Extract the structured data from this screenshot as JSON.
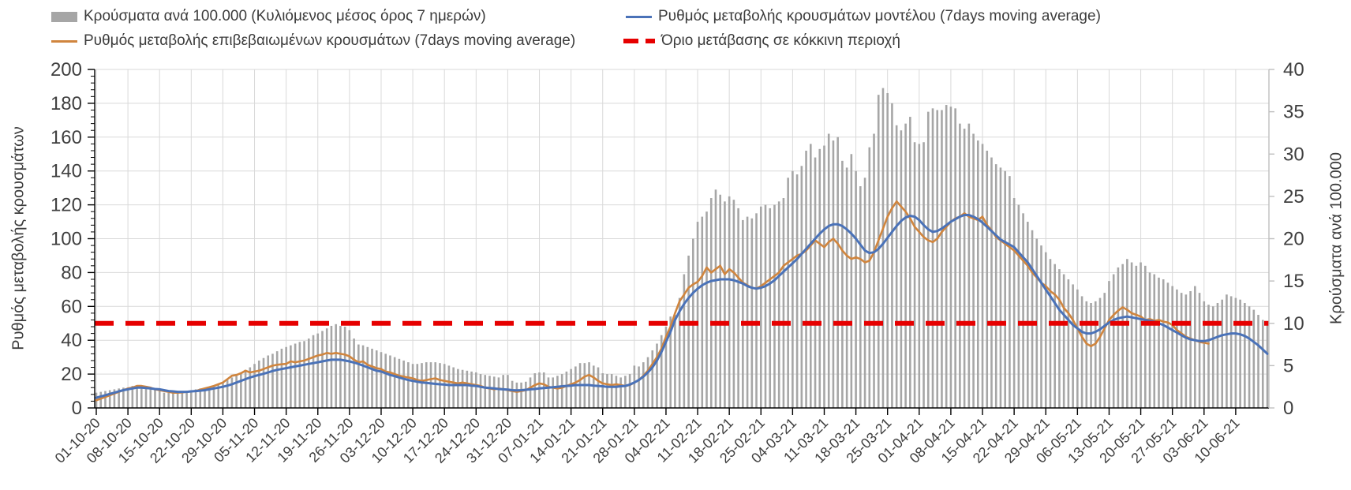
{
  "legend": {
    "items": [
      {
        "id": "cases-bars",
        "label": "Κρούσματα ανά 100.000 (Κυλιόμενος μέσος όρος 7 ημερών)",
        "swatch": "bar",
        "color": "#a6a6a6"
      },
      {
        "id": "model-line",
        "label": "Ρυθμός μεταβολής κρουσμάτων μοντέλου (7days moving average)",
        "swatch": "line",
        "color": "#4a72b8"
      },
      {
        "id": "confirmed-line",
        "label": "Ρυθμός μεταβολής επιβεβαιωμένων κρουσμάτων (7days moving average)",
        "swatch": "line",
        "color": "#d0853e"
      },
      {
        "id": "threshold",
        "label": "Όριο μετάβασης σε κόκκινη περιοχή",
        "swatch": "dash",
        "color": "#e60000"
      }
    ]
  },
  "chart_data": {
    "type": "combo",
    "left_axis": {
      "label": "Ρυθμός μεταβολής κρουσμάτων",
      "min": 0,
      "max": 200,
      "step": 20,
      "minor_step": 4
    },
    "right_axis": {
      "label": "Κρούσματα ανά 100.000",
      "min": 0,
      "max": 40,
      "step": 5
    },
    "x_tick_interval_days": 7,
    "x_tick_labels": [
      "01-10-20",
      "08-10-20",
      "15-10-20",
      "22-10-20",
      "29-10-20",
      "05-11-20",
      "12-11-20",
      "19-11-20",
      "26-11-20",
      "03-12-20",
      "10-12-20",
      "17-12-20",
      "24-12-20",
      "31-12-20",
      "07-01-21",
      "14-01-21",
      "21-01-21",
      "28-01-21",
      "04-02-21",
      "11-02-21",
      "18-02-21",
      "25-02-21",
      "04-03-21",
      "11-03-21",
      "18-03-21",
      "25-03-21",
      "01-04-21",
      "08-04-21",
      "15-04-21",
      "22-04-21",
      "29-04-21",
      "06-05-21",
      "13-05-21",
      "20-05-21",
      "27-05-21",
      "03-06-21",
      "10-06-21"
    ],
    "threshold": {
      "label": "Όριο μετάβασης σε κόκκινη περιοχή",
      "value_left_axis": 50,
      "value_right_axis": 10,
      "color": "#e60000"
    },
    "grid_color": "#d9d9d9",
    "series": [
      {
        "name": "Κρούσματα ανά 100.000 (Κυλιόμενος μέσος όρος 7 ημερών)",
        "type": "bar",
        "axis": "right",
        "color": "#a6a6a6",
        "values": [
          1.8,
          1.9,
          2,
          2.1,
          2.2,
          2.3,
          2.4,
          2.4,
          2.6,
          2.7,
          2.6,
          2.6,
          2.4,
          2.2,
          2,
          1.8,
          1.8,
          1.9,
          1.9,
          2,
          2,
          2.1,
          2.2,
          2.3,
          2.4,
          2.5,
          2.6,
          2.8,
          3,
          3.3,
          3.6,
          3.9,
          4.2,
          4.5,
          4.8,
          5.2,
          5.6,
          5.9,
          6.2,
          6.4,
          6.7,
          7,
          7.2,
          7.4,
          7.6,
          7.8,
          7.9,
          8.2,
          8.6,
          8.8,
          9.1,
          9.4,
          9.7,
          9.9,
          9.7,
          9.6,
          9.2,
          8.2,
          7.5,
          7.4,
          7.2,
          7,
          6.8,
          6.6,
          6.4,
          6.2,
          6,
          5.8,
          5.6,
          5.4,
          5.2,
          5.2,
          5.3,
          5.4,
          5.4,
          5.4,
          5.3,
          5.2,
          5,
          4.8,
          4.6,
          4.5,
          4.4,
          4.3,
          4.2,
          4,
          3.9,
          3.8,
          3.7,
          3.6,
          3.9,
          3.9,
          3.2,
          3,
          3,
          3.1,
          3.6,
          4.1,
          4.2,
          4.2,
          3.6,
          3.6,
          3.8,
          4,
          4.3,
          4.6,
          4.9,
          5.3,
          5.3,
          5.4,
          5,
          4.8,
          4.1,
          4,
          4,
          3.8,
          3.6,
          3.8,
          4,
          5,
          4.9,
          5.4,
          6,
          6.8,
          7.6,
          8.6,
          9.6,
          10.8,
          11,
          13,
          15.8,
          18,
          20,
          22,
          22.6,
          23.2,
          24.8,
          25.8,
          25.2,
          24.4,
          25,
          24.6,
          23.6,
          22.2,
          22.6,
          22.4,
          23,
          23.8,
          24,
          23.6,
          24,
          24.4,
          24.8,
          27.2,
          28,
          27.6,
          28.6,
          30.4,
          31.2,
          29.6,
          30.6,
          31,
          32.4,
          31.6,
          32,
          29.2,
          28.4,
          30,
          28,
          26.2,
          27.2,
          30.8,
          32.4,
          37,
          37.8,
          37.2,
          36,
          33.4,
          32.8,
          33.6,
          34.4,
          31.4,
          31.2,
          31.4,
          35,
          35.4,
          35.2,
          35.2,
          35.8,
          35.6,
          35.4,
          33.6,
          33,
          33.6,
          32.4,
          31.6,
          31.2,
          30.4,
          29.6,
          28.8,
          28.4,
          28,
          27.4,
          24.8,
          24,
          23,
          22,
          21,
          20,
          19.2,
          18.4,
          17.6,
          17,
          16.4,
          15.8,
          15.2,
          14.6,
          14,
          13.2,
          12.6,
          12.4,
          12.6,
          13,
          13.6,
          15,
          15.8,
          16.6,
          17,
          17.6,
          17.2,
          16.8,
          17.2,
          16.8,
          16,
          15.8,
          15.4,
          15.2,
          14.8,
          14.4,
          14,
          13.6,
          13.4,
          13.8,
          14.4,
          13.6,
          12.6,
          12.2,
          12,
          12.4,
          12.8,
          13.4,
          13.2,
          13,
          12.8,
          12.4,
          12,
          11.6,
          11,
          10.4,
          9.8
        ]
      },
      {
        "name": "Ρυθμός μεταβολής επιβεβαιωμένων κρουσμάτων (7days moving average)",
        "type": "line",
        "axis": "left",
        "color": "#d0853e",
        "values": [
          4.5,
          5.5,
          6.5,
          7.5,
          8.5,
          9.5,
          10.5,
          11.5,
          12,
          13,
          13,
          12.5,
          12,
          11,
          10.5,
          10,
          9.5,
          9,
          9,
          9.2,
          9.5,
          9.8,
          10,
          10.8,
          11.5,
          12.2,
          13,
          14,
          15,
          17,
          19,
          19.5,
          20.5,
          22,
          21,
          21.5,
          22,
          23,
          24,
          25,
          25.5,
          25.8,
          26,
          27.5,
          27,
          27.5,
          28,
          29,
          30,
          31,
          31.5,
          32.5,
          32,
          32.5,
          32,
          31.5,
          30.5,
          28.5,
          27,
          27.5,
          25.5,
          24.5,
          23.5,
          23,
          21.5,
          21,
          20,
          19,
          18.5,
          18,
          17.5,
          16.5,
          16,
          16.5,
          17,
          17.5,
          16.5,
          16,
          15.5,
          15,
          14.5,
          15,
          14.5,
          14,
          13.5,
          13,
          12,
          11.5,
          11,
          11.5,
          11,
          10.5,
          10,
          9.5,
          10,
          10.5,
          12,
          13.5,
          14.5,
          14,
          12.5,
          12,
          11.5,
          12,
          13,
          14,
          15,
          16.5,
          18.5,
          19.5,
          18,
          16,
          14.5,
          14,
          13.5,
          14,
          13.5,
          13,
          13.5,
          15,
          16.5,
          19,
          22,
          26,
          30,
          35,
          42,
          48,
          56,
          63,
          67,
          71,
          73,
          74.5,
          78,
          83,
          80,
          82,
          84,
          79,
          82,
          80,
          77,
          74,
          72.5,
          71,
          70.5,
          72,
          74,
          76,
          78,
          80,
          84,
          86,
          88,
          90,
          91,
          93,
          96,
          99,
          97,
          95,
          98,
          100,
          97,
          93,
          90,
          88,
          89,
          88,
          86,
          87,
          92,
          99,
          106,
          113,
          118,
          122,
          119,
          116,
          112,
          107,
          104,
          101,
          99,
          98,
          100,
          104,
          107,
          110,
          112,
          113,
          115,
          113,
          112,
          111,
          113,
          108,
          105,
          101,
          99,
          97,
          95,
          93,
          90,
          87,
          84,
          80,
          77,
          74,
          72,
          69,
          67,
          64,
          59,
          56,
          52,
          47,
          42,
          38,
          36.5,
          38,
          42,
          47,
          52,
          55,
          57.5,
          59.5,
          58,
          56,
          55,
          54,
          52,
          52.5,
          51.5,
          52,
          51,
          50.5,
          49,
          46,
          44,
          42,
          41,
          40,
          39,
          38.5,
          38
        ]
      },
      {
        "name": "Ρυθμός μεταβολής κρουσμάτων μοντέλου (7days moving average)",
        "type": "line",
        "axis": "left",
        "color": "#4a72b8",
        "values": [
          6,
          6.8,
          7.5,
          8.3,
          9,
          9.8,
          10.5,
          11,
          11.5,
          12,
          12,
          11.8,
          11.5,
          11.2,
          11,
          10.5,
          10,
          9.8,
          9.5,
          9.5,
          9.5,
          9.8,
          10,
          10.2,
          10.5,
          11,
          11.5,
          12,
          12.5,
          13.2,
          14,
          15,
          16,
          17,
          18,
          18.8,
          19.5,
          20.2,
          21,
          21.8,
          22.5,
          23,
          23.5,
          24,
          24.5,
          25,
          25.5,
          26,
          26.5,
          27,
          27.5,
          28,
          28.5,
          28.5,
          28.5,
          28,
          27.5,
          26.8,
          26,
          25,
          24,
          23,
          22,
          21.5,
          20.5,
          19.5,
          18.8,
          18,
          17.2,
          16.5,
          16,
          15.5,
          15,
          14.8,
          14.5,
          14.2,
          14,
          13.8,
          13.5,
          13.5,
          13.5,
          13.5,
          13.5,
          13.2,
          13,
          12.5,
          12,
          11.8,
          11.5,
          11.2,
          11,
          10.8,
          10.5,
          10.4,
          10.5,
          10.7,
          11,
          11.2,
          11.5,
          11.8,
          12,
          12.2,
          12.5,
          12.8,
          13,
          13.2,
          13.5,
          13.5,
          13.5,
          13.5,
          13.2,
          13,
          12.8,
          12.5,
          12.5,
          12.5,
          12.8,
          13,
          13.8,
          15,
          16.5,
          18.5,
          21,
          24,
          28,
          33,
          39,
          45,
          52,
          57,
          61.5,
          65,
          68,
          70.5,
          72.5,
          74,
          75,
          75.5,
          76,
          76,
          76,
          75.5,
          74.5,
          73.5,
          72,
          71,
          70.5,
          71,
          72,
          73.5,
          75.5,
          78,
          80.5,
          83,
          85.5,
          88,
          91,
          94,
          97,
          100,
          103,
          105.5,
          107.5,
          108.5,
          108.5,
          107.5,
          105.5,
          103,
          100,
          96.5,
          93,
          91.5,
          92,
          94,
          97,
          100.5,
          104,
          107.5,
          110.5,
          112.5,
          113.5,
          113,
          111,
          108,
          105.5,
          104,
          104.5,
          106,
          108,
          110,
          111.5,
          113,
          114,
          114,
          113,
          111.5,
          109.5,
          107,
          104.5,
          102,
          99.5,
          98,
          96.5,
          95,
          92,
          89,
          86,
          82,
          78,
          74,
          70,
          66,
          62,
          58,
          55,
          52,
          49,
          47,
          45,
          44,
          44,
          45,
          46.5,
          48.5,
          50.5,
          52,
          53,
          53.5,
          54,
          53.5,
          53,
          52.5,
          52,
          51.5,
          51,
          50,
          49,
          47.5,
          46,
          44.5,
          43,
          41.5,
          40.5,
          40,
          39.5,
          39.5,
          40,
          41,
          42,
          43,
          43.5,
          44,
          44,
          43.5,
          42.5,
          41,
          39,
          37,
          34.5,
          32
        ]
      }
    ]
  }
}
